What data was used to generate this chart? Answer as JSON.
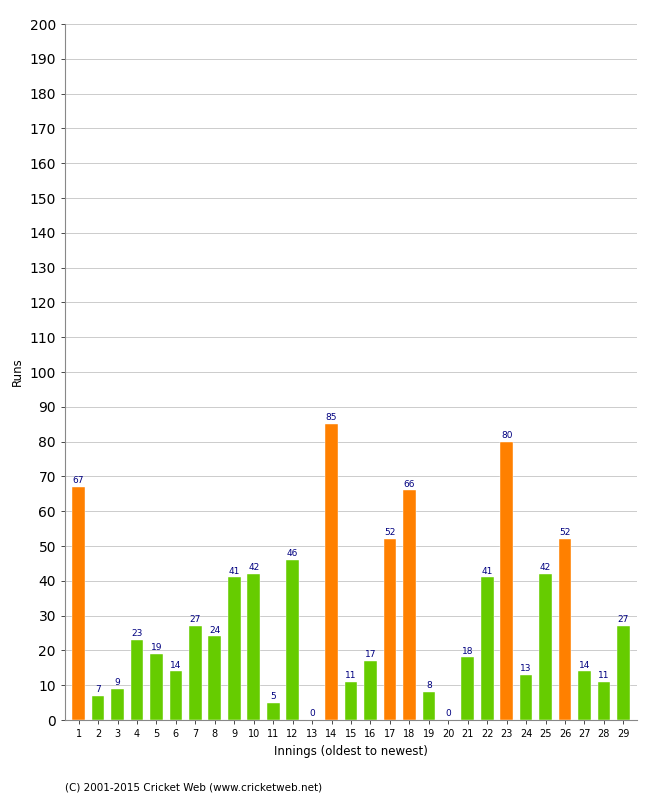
{
  "values": [
    67,
    7,
    9,
    23,
    19,
    14,
    27,
    24,
    41,
    42,
    5,
    46,
    0,
    85,
    11,
    17,
    52,
    66,
    8,
    0,
    18,
    41,
    80,
    13,
    42,
    52,
    14,
    11,
    27
  ],
  "colors": [
    "#FF8000",
    "#66CC00",
    "#66CC00",
    "#66CC00",
    "#66CC00",
    "#66CC00",
    "#66CC00",
    "#66CC00",
    "#66CC00",
    "#66CC00",
    "#66CC00",
    "#66CC00",
    "#66CC00",
    "#FF8000",
    "#66CC00",
    "#66CC00",
    "#FF8000",
    "#FF8000",
    "#66CC00",
    "#66CC00",
    "#66CC00",
    "#66CC00",
    "#FF8000",
    "#66CC00",
    "#66CC00",
    "#FF8000",
    "#66CC00",
    "#66CC00",
    "#66CC00"
  ],
  "innings": [
    1,
    2,
    3,
    4,
    5,
    6,
    7,
    8,
    9,
    10,
    11,
    12,
    13,
    14,
    15,
    16,
    17,
    18,
    19,
    20,
    21,
    22,
    23,
    24,
    25,
    26,
    27,
    28,
    29
  ],
  "xlabel": "Innings (oldest to newest)",
  "ylabel": "Runs",
  "ylim": [
    0,
    200
  ],
  "yticks": [
    0,
    10,
    20,
    30,
    40,
    50,
    60,
    70,
    80,
    90,
    100,
    110,
    120,
    130,
    140,
    150,
    160,
    170,
    180,
    190,
    200
  ],
  "background_color": "#FFFFFF",
  "grid_color": "#CCCCCC",
  "label_color": "#000080",
  "label_fontsize": 6.5,
  "bar_width": 0.65,
  "footer": "(C) 2001-2015 Cricket Web (www.cricketweb.net)"
}
